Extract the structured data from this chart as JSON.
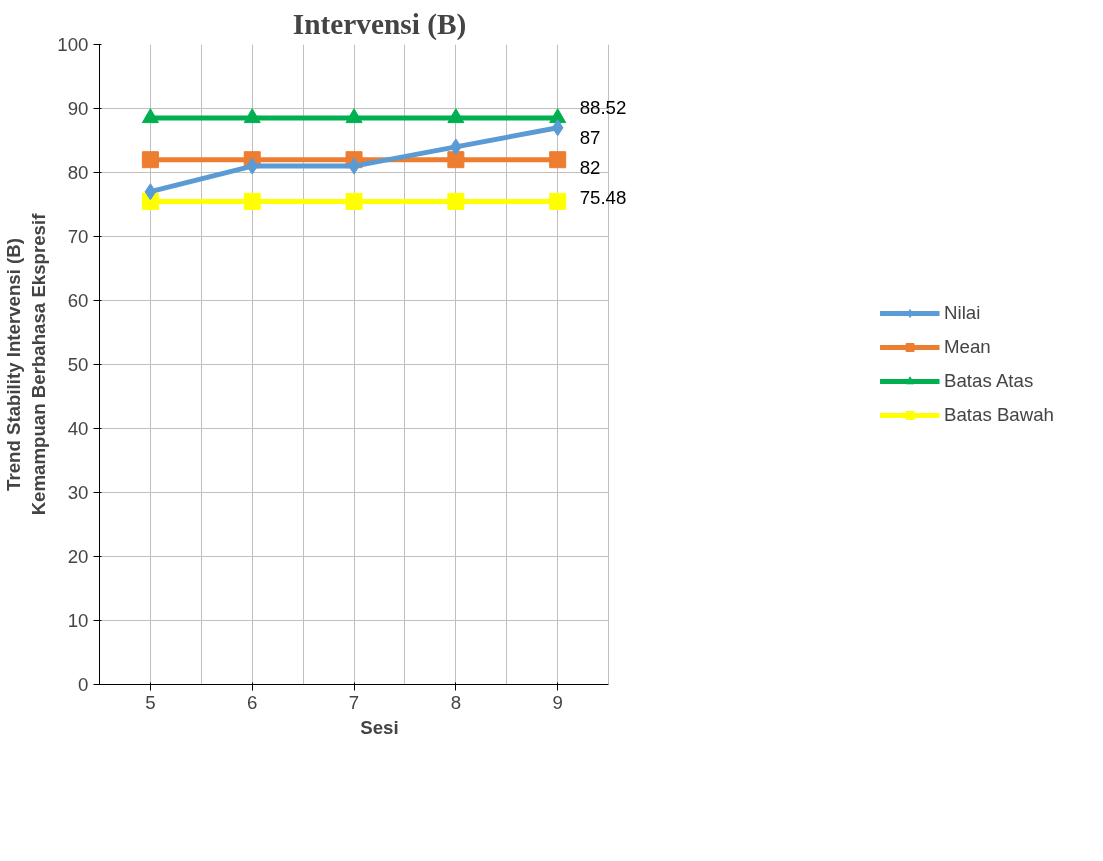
{
  "chart_data": {
    "type": "line",
    "title": "Intervensi (B)",
    "xlabel": "Sesi",
    "ylabel": "Trend Stability Intervensi (B)\nKemampuan Berbahasa Ekspresif",
    "categories": [
      "5",
      "6",
      "7",
      "8",
      "9"
    ],
    "series": [
      {
        "name": "Nilai",
        "color": "#5b9bd5",
        "marker": "diamond",
        "values": [
          77,
          81,
          81,
          84,
          87
        ],
        "value_labels": [
          null,
          null,
          null,
          null,
          "87"
        ]
      },
      {
        "name": "Mean",
        "color": "#ed7d31",
        "marker": "square",
        "values": [
          82,
          82,
          82,
          82,
          82
        ],
        "value_labels": [
          null,
          null,
          null,
          null,
          "82"
        ]
      },
      {
        "name": "Batas Atas",
        "color": "#00b050",
        "marker": "triangle",
        "values": [
          88.52,
          88.52,
          88.52,
          88.52,
          88.52
        ],
        "value_labels": [
          null,
          null,
          null,
          null,
          "88.52"
        ]
      },
      {
        "name": "Batas Bawah",
        "color": "#ffff00",
        "marker": "square",
        "values": [
          75.48,
          75.48,
          75.48,
          75.48,
          75.48
        ],
        "value_labels": [
          null,
          null,
          null,
          null,
          "75.48"
        ]
      }
    ],
    "ylim": [
      0,
      100
    ],
    "yticks": [
      0,
      10,
      20,
      30,
      40,
      50,
      60,
      70,
      80,
      90,
      100
    ],
    "grid": true,
    "legend": "right",
    "line_style": "solid"
  }
}
